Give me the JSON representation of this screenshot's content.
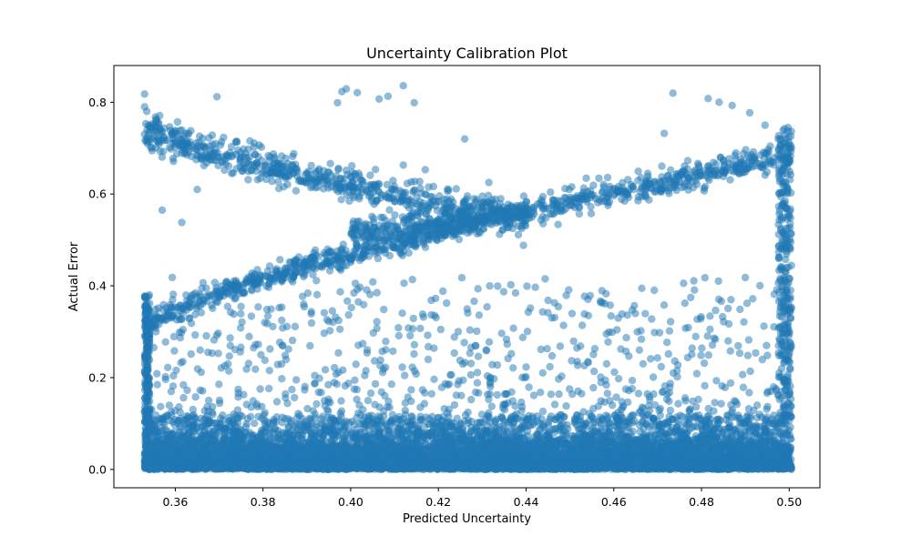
{
  "chart_data": {
    "type": "scatter",
    "title": "Uncertainty Calibration Plot",
    "xlabel": "Predicted Uncertainty",
    "ylabel": "Actual Error",
    "xlim": [
      0.346,
      0.507
    ],
    "ylim": [
      -0.04,
      0.88
    ],
    "xticks": [
      0.36,
      0.38,
      0.4,
      0.42,
      0.44,
      0.46,
      0.48,
      0.5
    ],
    "xtick_labels": [
      "0.36",
      "0.38",
      "0.40",
      "0.42",
      "0.44",
      "0.46",
      "0.48",
      "0.50"
    ],
    "yticks": [
      0.0,
      0.2,
      0.4,
      0.6,
      0.8
    ],
    "ytick_labels": [
      "0.0",
      "0.2",
      "0.4",
      "0.6",
      "0.8"
    ],
    "grid": false,
    "legend": "none",
    "marker_color": "#1f77b4",
    "marker_alpha": 0.5,
    "point_groups": [
      {
        "name": "dense-error-band",
        "x_range": [
          0.353,
          0.5005
        ],
        "y_range": [
          0.0,
          0.12
        ],
        "count": 9000
      },
      {
        "name": "scattered-mid",
        "x_range": [
          0.353,
          0.5005
        ],
        "y_range": [
          0.1,
          0.42
        ],
        "count": 800
      },
      {
        "name": "upper-descending-arc",
        "x_range": [
          0.353,
          0.44
        ],
        "y_range": [
          0.52,
          0.75
        ],
        "count": 700
      },
      {
        "name": "upper-ascending-arc",
        "x_range": [
          0.4,
          0.5005
        ],
        "y_range": [
          0.52,
          0.72
        ],
        "count": 700
      },
      {
        "name": "lower-rising-arc",
        "x_range": [
          0.353,
          0.43
        ],
        "y_range": [
          0.2,
          0.55
        ],
        "count": 600
      },
      {
        "name": "high-outliers",
        "x_range": [
          0.353,
          0.5005
        ],
        "y_range": [
          0.7,
          0.84
        ],
        "count": 40
      }
    ],
    "points": [
      {
        "x": 0.353,
        "y": 0.818
      },
      {
        "x": 0.353,
        "y": 0.79
      },
      {
        "x": 0.3535,
        "y": 0.78
      },
      {
        "x": 0.3695,
        "y": 0.812
      },
      {
        "x": 0.398,
        "y": 0.823
      },
      {
        "x": 0.399,
        "y": 0.829
      },
      {
        "x": 0.4015,
        "y": 0.821
      },
      {
        "x": 0.4065,
        "y": 0.807
      },
      {
        "x": 0.4085,
        "y": 0.813
      },
      {
        "x": 0.412,
        "y": 0.836
      },
      {
        "x": 0.4145,
        "y": 0.799
      },
      {
        "x": 0.397,
        "y": 0.799
      },
      {
        "x": 0.4735,
        "y": 0.82
      },
      {
        "x": 0.4815,
        "y": 0.808
      },
      {
        "x": 0.484,
        "y": 0.8
      },
      {
        "x": 0.487,
        "y": 0.793
      },
      {
        "x": 0.491,
        "y": 0.777
      },
      {
        "x": 0.4945,
        "y": 0.75
      },
      {
        "x": 0.426,
        "y": 0.72
      },
      {
        "x": 0.4715,
        "y": 0.732
      },
      {
        "x": 0.357,
        "y": 0.565
      },
      {
        "x": 0.3615,
        "y": 0.538
      },
      {
        "x": 0.365,
        "y": 0.61
      },
      {
        "x": 0.412,
        "y": 0.663
      },
      {
        "x": 0.417,
        "y": 0.653
      },
      {
        "x": 0.4315,
        "y": 0.625
      }
    ]
  }
}
